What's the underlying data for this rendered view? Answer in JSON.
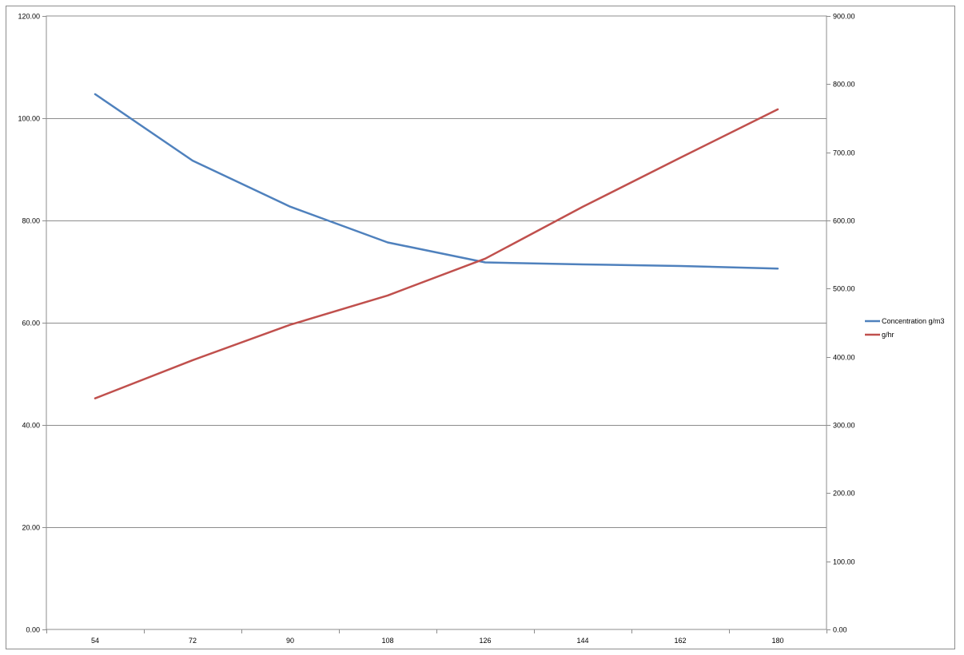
{
  "chart_data": {
    "type": "line",
    "title": "",
    "xlabel": "",
    "ylabel": "",
    "y2label": "",
    "grid": true,
    "legend_position": "right",
    "categories": [
      "54",
      "72",
      "90",
      "108",
      "126",
      "144",
      "162",
      "180"
    ],
    "x": [
      54,
      72,
      90,
      108,
      126,
      144,
      162,
      180
    ],
    "ylim": [
      0,
      120
    ],
    "y2lim": [
      0,
      900
    ],
    "y_ticks": [
      "0.00",
      "20.00",
      "40.00",
      "60.00",
      "80.00",
      "100.00",
      "120.00"
    ],
    "y2_ticks": [
      "0.00",
      "100.00",
      "200.00",
      "300.00",
      "400.00",
      "500.00",
      "600.00",
      "700.00",
      "800.00",
      "900.00"
    ],
    "series": [
      {
        "name": "Concentration g/m3",
        "axis": "left",
        "color": "#4f81bd",
        "values": [
          104.7,
          91.7,
          82.7,
          75.7,
          71.8,
          71.4,
          71.1,
          70.6
        ]
      },
      {
        "name": "g/hr",
        "axis": "right",
        "color": "#c0504d",
        "values": [
          339,
          395,
          447,
          490,
          544,
          620,
          692,
          763
        ]
      }
    ]
  }
}
